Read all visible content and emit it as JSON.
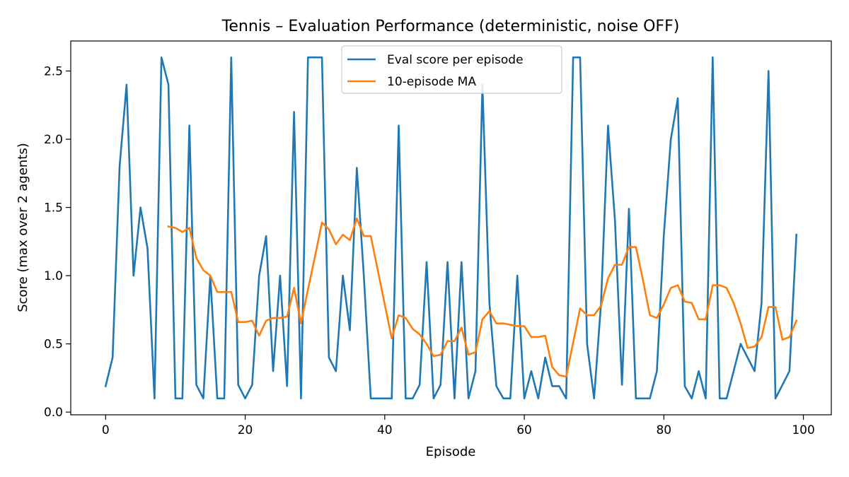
{
  "chart_data": {
    "type": "line",
    "title": "Tennis – Evaluation Performance (deterministic, noise OFF)",
    "xlabel": "Episode",
    "ylabel": "Score (max over 2 agents)",
    "xlim": [
      -5,
      104
    ],
    "ylim": [
      -0.02,
      2.72
    ],
    "xticks": [
      0,
      20,
      40,
      60,
      80,
      100
    ],
    "xtick_labels": [
      "0",
      "20",
      "40",
      "60",
      "80",
      "100"
    ],
    "yticks": [
      0.0,
      0.5,
      1.0,
      1.5,
      2.0,
      2.5
    ],
    "ytick_labels": [
      "0.0",
      "0.5",
      "1.0",
      "1.5",
      "2.0",
      "2.5"
    ],
    "grid": false,
    "legend_position": "upper center",
    "series": [
      {
        "name": "Eval score per episode",
        "color": "#1f77b4",
        "x_start": 0,
        "values": [
          0.19,
          0.4,
          1.8,
          2.4,
          1.0,
          1.5,
          1.2,
          0.1,
          2.6,
          2.4,
          0.1,
          0.1,
          2.1,
          0.2,
          0.1,
          1.0,
          0.1,
          0.1,
          2.6,
          0.2,
          0.1,
          0.2,
          1.0,
          1.29,
          0.3,
          1.0,
          0.19,
          2.2,
          0.1,
          2.6,
          2.6,
          2.6,
          0.4,
          0.3,
          1.0,
          0.6,
          1.79,
          1.0,
          0.1,
          0.1,
          0.1,
          0.1,
          2.1,
          0.1,
          0.1,
          0.2,
          1.1,
          0.1,
          0.2,
          1.1,
          0.1,
          1.1,
          0.1,
          0.3,
          2.4,
          0.8,
          0.19,
          0.1,
          0.1,
          1.0,
          0.1,
          0.3,
          0.1,
          0.4,
          0.19,
          0.19,
          0.1,
          2.6,
          2.6,
          0.5,
          0.1,
          0.8,
          2.1,
          1.4,
          0.2,
          1.49,
          0.1,
          0.1,
          0.1,
          0.3,
          1.3,
          2.0,
          2.3,
          0.19,
          0.1,
          0.3,
          0.1,
          2.6,
          0.1,
          0.1,
          0.3,
          0.5,
          0.4,
          0.3,
          0.8,
          2.5,
          0.1,
          0.2,
          0.3,
          1.3
        ]
      },
      {
        "name": "10-episode MA",
        "color": "#ff7f0e",
        "x_start": 9,
        "values": [
          1.36,
          1.35,
          1.32,
          1.35,
          1.13,
          1.04,
          1.0,
          0.88,
          0.88,
          0.88,
          0.66,
          0.66,
          0.67,
          0.56,
          0.67,
          0.69,
          0.69,
          0.7,
          0.91,
          0.65,
          0.9,
          1.14,
          1.39,
          1.34,
          1.23,
          1.3,
          1.26,
          1.42,
          1.29,
          1.29,
          1.04,
          0.79,
          0.54,
          0.71,
          0.69,
          0.61,
          0.57,
          0.5,
          0.41,
          0.42,
          0.52,
          0.52,
          0.62,
          0.42,
          0.44,
          0.68,
          0.74,
          0.65,
          0.65,
          0.64,
          0.63,
          0.63,
          0.55,
          0.55,
          0.56,
          0.33,
          0.27,
          0.26,
          0.51,
          0.76,
          0.71,
          0.71,
          0.78,
          0.98,
          1.08,
          1.08,
          1.21,
          1.21,
          0.97,
          0.71,
          0.69,
          0.79,
          0.91,
          0.93,
          0.81,
          0.8,
          0.68,
          0.68,
          0.93,
          0.93,
          0.91,
          0.8,
          0.65,
          0.47,
          0.48,
          0.55,
          0.77,
          0.77,
          0.53,
          0.55,
          0.67
        ]
      }
    ]
  }
}
